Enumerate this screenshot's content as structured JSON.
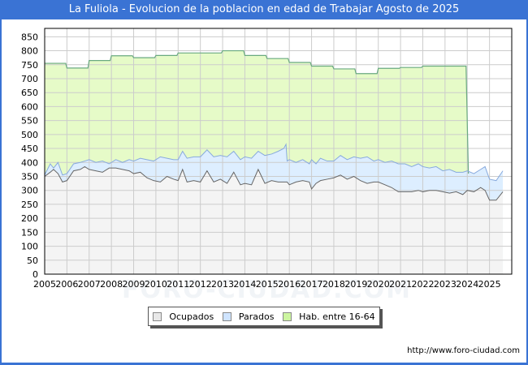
{
  "title": "La Fuliola - Evolucion de la poblacion en edad de Trabajar Agosto de 2025",
  "footer_url": "http://www.foro-ciudad.com",
  "watermark": "FORO-CIUDAD.COM",
  "legend": {
    "ocupados": "Ocupados",
    "parados": "Parados",
    "hab": "Hab. entre 16-64"
  },
  "colors": {
    "header_bg": "#3a73d4",
    "ocupados_fill": "#f4f4f4",
    "ocupados_line": "#666666",
    "parados_fill": "#ddeeff",
    "parados_line": "#88aadd",
    "hab_fill": "#e6fbc8",
    "hab_line": "#6aaa80",
    "grid": "#cccccc"
  },
  "chart_data": {
    "type": "area",
    "title": "La Fuliola - Evolucion de la poblacion en edad de Trabajar Agosto de 2025",
    "xlabel": "",
    "ylabel": "",
    "ylim": [
      0,
      900
    ],
    "yticks": [
      0,
      50,
      100,
      150,
      200,
      250,
      300,
      350,
      400,
      450,
      500,
      550,
      600,
      650,
      700,
      750,
      800,
      850
    ],
    "xticks": [
      "2005",
      "2006",
      "2007",
      "2008",
      "2009",
      "2010",
      "2011",
      "2012",
      "2013",
      "2014",
      "2015",
      "2016",
      "2017",
      "2018",
      "2019",
      "2020",
      "2021",
      "2022",
      "2023",
      "2024",
      "2025"
    ],
    "grid": true,
    "legend_position": "bottom",
    "series": [
      {
        "name": "Hab. entre 16-64",
        "x": [
          2005.0,
          2006.0,
          2007.0,
          2008.0,
          2009.0,
          2010.0,
          2011.0,
          2012.0,
          2013.0,
          2014.0,
          2015.0,
          2016.0,
          2017.0,
          2018.0,
          2019.0,
          2020.0,
          2021.0,
          2022.0,
          2023.0
        ],
        "values": [
          755,
          738,
          765,
          782,
          775,
          783,
          792,
          792,
          800,
          783,
          772,
          758,
          745,
          735,
          718,
          737,
          740,
          745,
          745
        ]
      },
      {
        "name": "Parados",
        "x": [
          2005.0,
          2005.25,
          2005.4,
          2005.6,
          2005.8,
          2006.0,
          2006.3,
          2006.6,
          2006.8,
          2007.0,
          2007.3,
          2007.6,
          2007.9,
          2008.2,
          2008.5,
          2008.8,
          2009.0,
          2009.3,
          2009.6,
          2009.9,
          2010.2,
          2010.5,
          2010.8,
          2011.0,
          2011.2,
          2011.4,
          2011.7,
          2012.0,
          2012.3,
          2012.6,
          2012.9,
          2013.2,
          2013.5,
          2013.8,
          2014.0,
          2014.3,
          2014.6,
          2014.9,
          2015.2,
          2015.5,
          2015.75,
          2015.85,
          2015.9,
          2016.0,
          2016.3,
          2016.6,
          2016.9,
          2017.0,
          2017.2,
          2017.4,
          2017.7,
          2018.0,
          2018.3,
          2018.6,
          2018.9,
          2019.2,
          2019.5,
          2019.8,
          2020.0,
          2020.3,
          2020.6,
          2020.9,
          2021.2,
          2021.5,
          2021.8,
          2022.0,
          2022.3,
          2022.6,
          2022.9,
          2023.2,
          2023.5,
          2023.8,
          2024.0,
          2024.3,
          2024.6,
          2024.8,
          2025.0,
          2025.3,
          2025.6
        ],
        "values": [
          355,
          395,
          380,
          400,
          355,
          360,
          395,
          400,
          405,
          410,
          400,
          405,
          395,
          410,
          400,
          410,
          405,
          415,
          410,
          405,
          420,
          415,
          410,
          410,
          440,
          415,
          420,
          420,
          445,
          420,
          425,
          420,
          440,
          410,
          420,
          415,
          440,
          425,
          430,
          440,
          450,
          465,
          405,
          410,
          400,
          410,
          395,
          410,
          395,
          415,
          405,
          405,
          425,
          410,
          420,
          415,
          420,
          405,
          410,
          400,
          405,
          395,
          395,
          385,
          395,
          385,
          380,
          385,
          370,
          375,
          365,
          365,
          370,
          360,
          375,
          385,
          340,
          335,
          370
        ]
      },
      {
        "name": "Ocupados",
        "x": [
          2005.0,
          2005.25,
          2005.4,
          2005.6,
          2005.8,
          2006.0,
          2006.3,
          2006.6,
          2006.8,
          2007.0,
          2007.3,
          2007.6,
          2007.9,
          2008.2,
          2008.5,
          2008.8,
          2009.0,
          2009.3,
          2009.6,
          2009.9,
          2010.2,
          2010.5,
          2010.8,
          2011.0,
          2011.2,
          2011.4,
          2011.7,
          2012.0,
          2012.3,
          2012.6,
          2012.9,
          2013.2,
          2013.5,
          2013.8,
          2014.0,
          2014.3,
          2014.6,
          2014.9,
          2015.2,
          2015.5,
          2015.75,
          2015.85,
          2015.9,
          2016.0,
          2016.3,
          2016.6,
          2016.9,
          2017.0,
          2017.2,
          2017.4,
          2017.7,
          2018.0,
          2018.3,
          2018.6,
          2018.9,
          2019.2,
          2019.5,
          2019.8,
          2020.0,
          2020.3,
          2020.6,
          2020.9,
          2021.2,
          2021.5,
          2021.8,
          2022.0,
          2022.3,
          2022.6,
          2022.9,
          2023.2,
          2023.5,
          2023.8,
          2024.0,
          2024.3,
          2024.6,
          2024.8,
          2025.0,
          2025.3,
          2025.6
        ],
        "values": [
          350,
          365,
          375,
          360,
          330,
          335,
          370,
          375,
          385,
          375,
          370,
          365,
          380,
          380,
          375,
          370,
          360,
          365,
          345,
          335,
          330,
          350,
          340,
          335,
          375,
          330,
          335,
          330,
          370,
          330,
          340,
          325,
          365,
          320,
          325,
          320,
          375,
          325,
          335,
          330,
          330,
          330,
          330,
          320,
          330,
          335,
          330,
          305,
          325,
          335,
          340,
          345,
          355,
          340,
          350,
          335,
          325,
          330,
          330,
          320,
          310,
          295,
          295,
          295,
          300,
          295,
          300,
          300,
          295,
          290,
          295,
          285,
          300,
          295,
          310,
          300,
          265,
          265,
          295
        ]
      }
    ]
  }
}
